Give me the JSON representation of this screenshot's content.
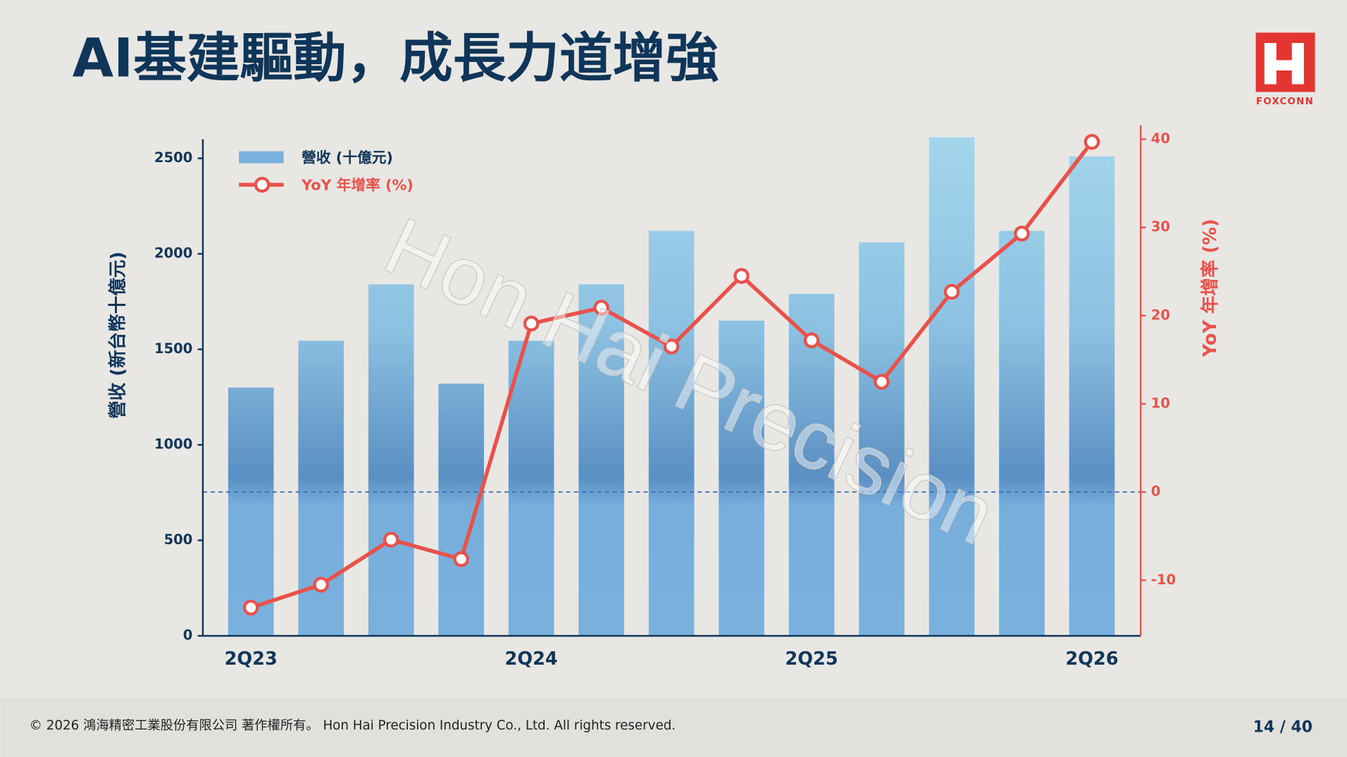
{
  "header": {
    "title": "AI基建驅動，成長力道增強",
    "logo": "FOXCONN"
  },
  "chart_data": {
    "type": "bar-line",
    "categories": [
      "2Q23",
      null,
      null,
      null,
      "2Q24",
      null,
      null,
      null,
      "2Q25",
      null,
      null,
      null,
      "2Q26"
    ],
    "series": [
      {
        "name": "營收 (十億元)",
        "type": "bar",
        "color": "#7ab0dc",
        "values": [
          1300,
          1545,
          1840,
          1320,
          1545,
          1840,
          2120,
          1650,
          1790,
          2060,
          2610,
          2120,
          2510
        ]
      },
      {
        "name": "YoY 年增率 (%)",
        "type": "line",
        "axis": "y2",
        "color": "#e8524a",
        "values": [
          -13.1,
          -10.5,
          -5.4,
          -7.6,
          19.1,
          20.9,
          16.5,
          24.5,
          17.2,
          12.5,
          22.7,
          29.3,
          39.7
        ]
      }
    ],
    "ylabel": "營收 (新台幣十億元)",
    "y2label": "YoY 年增率 (%)",
    "ylim": [
      0,
      2600
    ],
    "yticks": [
      0,
      500,
      1000,
      1500,
      2000,
      2500
    ],
    "y2lim": [
      -16.3,
      40
    ],
    "y2ticks": [
      -10,
      0,
      10,
      20,
      30,
      40
    ],
    "watermark": "Hon Hai Precision"
  },
  "footer": {
    "copyright": "© 2026 鴻海精密工業股份有限公司 著作權所有。 Hon Hai Precision Industry Co., Ltd. All rights reserved.",
    "page": "14 / 40"
  }
}
